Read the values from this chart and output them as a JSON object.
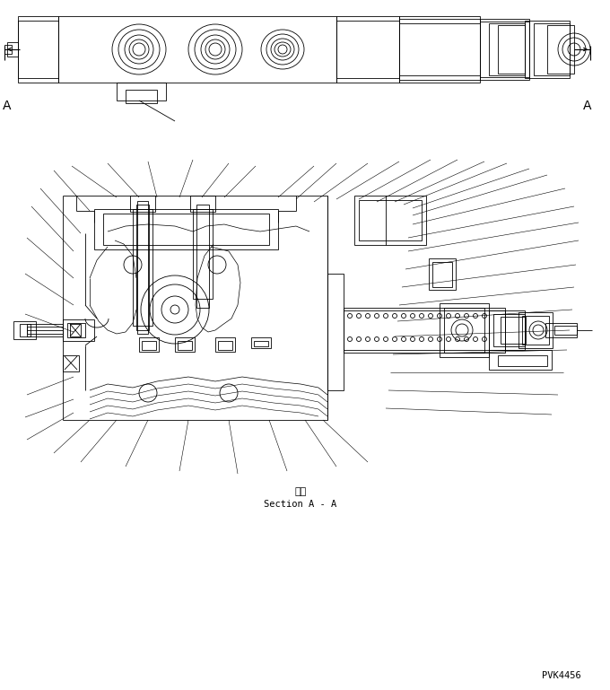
{
  "bg_color": "#ffffff",
  "line_color": "#000000",
  "section_label_jp": "断面",
  "section_label_en": "Section A - A",
  "part_number": "PVK4456",
  "label_A": "A",
  "fig_width": 6.8,
  "fig_height": 7.69,
  "dpi": 100
}
